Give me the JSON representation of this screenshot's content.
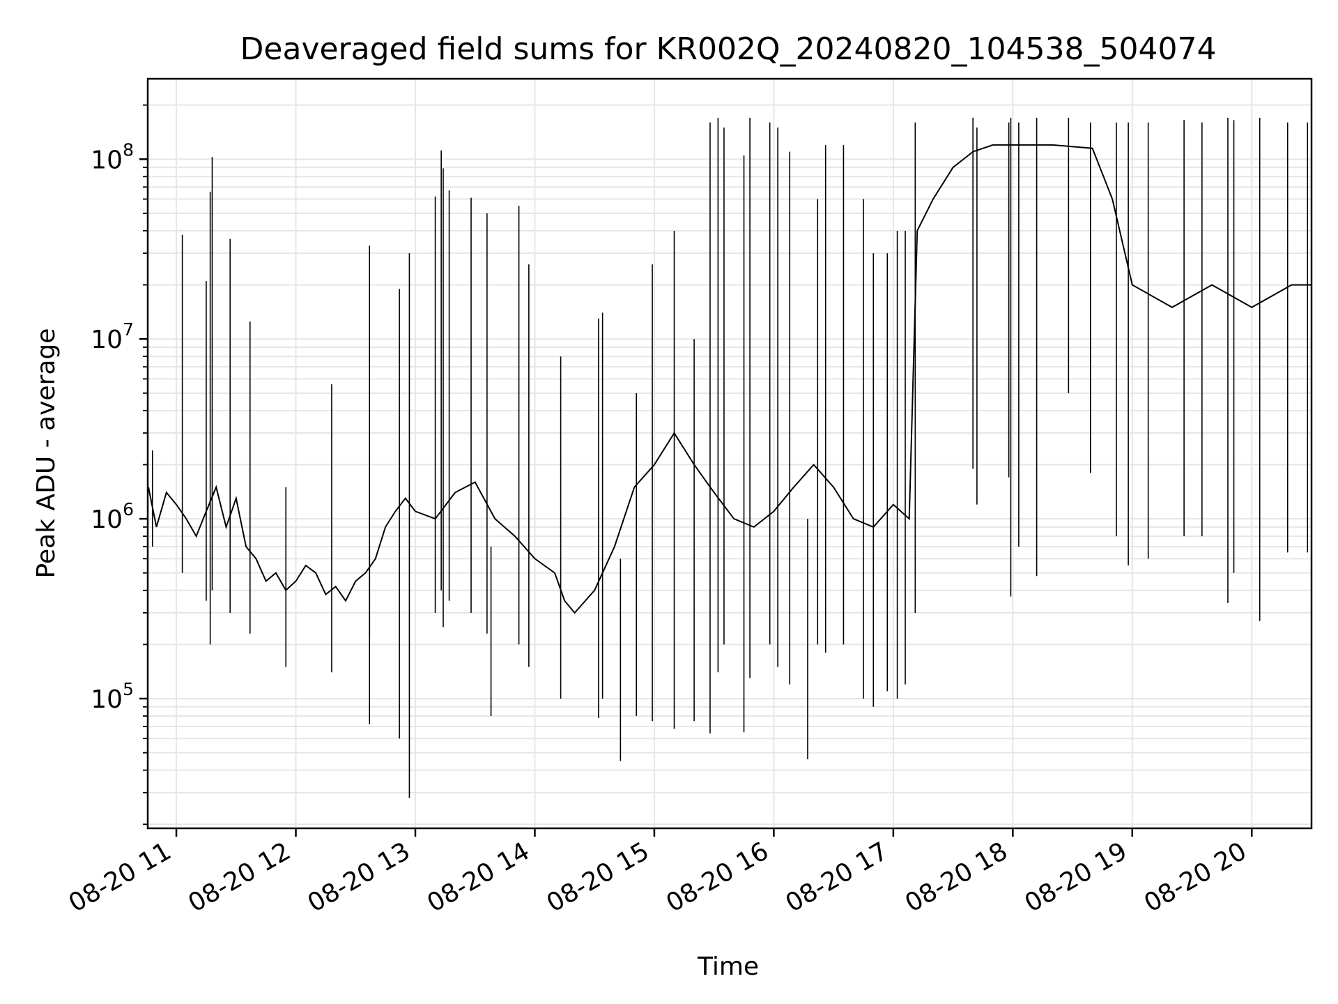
{
  "chart_data": {
    "type": "line",
    "title": "Deaveraged field sums for KR002Q_20240820_104538_504074",
    "xlabel": "Time",
    "ylabel": "Peak ADU - average",
    "yscale": "log",
    "grid": true,
    "line_color": "#000000",
    "grid_color": "#e6e6e6",
    "x_ticks": [
      "08-20 11",
      "08-20 12",
      "08-20 13",
      "08-20 14",
      "08-20 15",
      "08-20 16",
      "08-20 17",
      "08-20 18",
      "08-20 19",
      "08-20 20"
    ],
    "y_ticks": [
      {
        "value": 100000,
        "base": "10",
        "exp": "5"
      },
      {
        "value": 1000000,
        "base": "10",
        "exp": "6"
      },
      {
        "value": 10000000,
        "base": "10",
        "exp": "7"
      },
      {
        "value": 100000000,
        "base": "10",
        "exp": "8"
      }
    ],
    "xlim": [
      "2024-08-20 10:45:38",
      "2024-08-20 20:30:00"
    ],
    "ylim": [
      19000,
      280000000
    ],
    "series": [
      {
        "points": [
          [
            "2024-08-20 10:46",
            1500000
          ],
          [
            "2024-08-20 10:50",
            900000
          ],
          [
            "2024-08-20 10:55",
            1400000
          ],
          [
            "2024-08-20 11:00",
            1200000
          ],
          [
            "2024-08-20 11:05",
            1000000
          ],
          [
            "2024-08-20 11:10",
            800000
          ],
          [
            "2024-08-20 11:15",
            1100000
          ],
          [
            "2024-08-20 11:20",
            1500000
          ],
          [
            "2024-08-20 11:25",
            900000
          ],
          [
            "2024-08-20 11:30",
            1300000
          ],
          [
            "2024-08-20 11:35",
            700000
          ],
          [
            "2024-08-20 11:40",
            600000
          ],
          [
            "2024-08-20 11:45",
            450000
          ],
          [
            "2024-08-20 11:50",
            500000
          ],
          [
            "2024-08-20 11:55",
            400000
          ],
          [
            "2024-08-20 12:00",
            450000
          ],
          [
            "2024-08-20 12:05",
            550000
          ],
          [
            "2024-08-20 12:10",
            500000
          ],
          [
            "2024-08-20 12:15",
            380000
          ],
          [
            "2024-08-20 12:20",
            420000
          ],
          [
            "2024-08-20 12:25",
            350000
          ],
          [
            "2024-08-20 12:30",
            450000
          ],
          [
            "2024-08-20 12:35",
            500000
          ],
          [
            "2024-08-20 12:40",
            600000
          ],
          [
            "2024-08-20 12:45",
            900000
          ],
          [
            "2024-08-20 12:50",
            1100000
          ],
          [
            "2024-08-20 12:55",
            1300000
          ],
          [
            "2024-08-20 13:00",
            1100000
          ],
          [
            "2024-08-20 13:10",
            1000000
          ],
          [
            "2024-08-20 13:20",
            1400000
          ],
          [
            "2024-08-20 13:30",
            1600000
          ],
          [
            "2024-08-20 13:40",
            1000000
          ],
          [
            "2024-08-20 13:50",
            800000
          ],
          [
            "2024-08-20 14:00",
            600000
          ],
          [
            "2024-08-20 14:10",
            500000
          ],
          [
            "2024-08-20 14:15",
            350000
          ],
          [
            "2024-08-20 14:20",
            300000
          ],
          [
            "2024-08-20 14:30",
            400000
          ],
          [
            "2024-08-20 14:40",
            700000
          ],
          [
            "2024-08-20 14:50",
            1500000
          ],
          [
            "2024-08-20 15:00",
            2000000
          ],
          [
            "2024-08-20 15:10",
            3000000
          ],
          [
            "2024-08-20 15:20",
            2000000
          ],
          [
            "2024-08-20 15:30",
            1400000
          ],
          [
            "2024-08-20 15:40",
            1000000
          ],
          [
            "2024-08-20 15:50",
            900000
          ],
          [
            "2024-08-20 16:00",
            1100000
          ],
          [
            "2024-08-20 16:10",
            1500000
          ],
          [
            "2024-08-20 16:20",
            2000000
          ],
          [
            "2024-08-20 16:30",
            1500000
          ],
          [
            "2024-08-20 16:40",
            1000000
          ],
          [
            "2024-08-20 16:50",
            900000
          ],
          [
            "2024-08-20 17:00",
            1200000
          ],
          [
            "2024-08-20 17:08",
            1000000
          ],
          [
            "2024-08-20 17:12",
            40000000
          ],
          [
            "2024-08-20 17:20",
            60000000
          ],
          [
            "2024-08-20 17:30",
            90000000
          ],
          [
            "2024-08-20 17:40",
            110000000
          ],
          [
            "2024-08-20 17:50",
            120000000
          ],
          [
            "2024-08-20 18:00",
            120000000
          ],
          [
            "2024-08-20 18:20",
            120000000
          ],
          [
            "2024-08-20 18:40",
            115000000
          ],
          [
            "2024-08-20 18:50",
            60000000
          ],
          [
            "2024-08-20 19:00",
            20000000
          ],
          [
            "2024-08-20 19:20",
            15000000
          ],
          [
            "2024-08-20 19:40",
            20000000
          ],
          [
            "2024-08-20 20:00",
            15000000
          ],
          [
            "2024-08-20 20:20",
            20000000
          ],
          [
            "2024-08-20 20:30",
            20000000
          ]
        ],
        "spikes": [
          [
            "2024-08-20 10:48",
            700000,
            2400000
          ],
          [
            "2024-08-20 11:03",
            500000,
            38000000
          ],
          [
            "2024-08-20 11:15",
            350000,
            21000000
          ],
          [
            "2024-08-20 11:17",
            200000,
            66000000
          ],
          [
            "2024-08-20 11:18",
            400000,
            103000000
          ],
          [
            "2024-08-20 11:27",
            300000,
            36000000
          ],
          [
            "2024-08-20 11:37",
            230000,
            12500000
          ],
          [
            "2024-08-20 11:55",
            150000,
            1500000
          ],
          [
            "2024-08-20 12:18",
            140000,
            5600000
          ],
          [
            "2024-08-20 12:37",
            220000,
            33000000
          ],
          [
            "2024-08-20 12:37",
            72000,
            700000
          ],
          [
            "2024-08-20 12:57",
            28000,
            30000000
          ],
          [
            "2024-08-20 12:52",
            60000,
            19000000
          ],
          [
            "2024-08-20 13:10",
            300000,
            62000000
          ],
          [
            "2024-08-20 13:13",
            400000,
            112000000
          ],
          [
            "2024-08-20 13:14",
            250000,
            89000000
          ],
          [
            "2024-08-20 13:17",
            350000,
            67000000
          ],
          [
            "2024-08-20 13:28",
            300000,
            61000000
          ],
          [
            "2024-08-20 13:36",
            230000,
            50000000
          ],
          [
            "2024-08-20 13:38",
            80000,
            700000
          ],
          [
            "2024-08-20 13:52",
            200000,
            55000000
          ],
          [
            "2024-08-20 13:57",
            150000,
            26000000
          ],
          [
            "2024-08-20 14:13",
            100000,
            8000000
          ],
          [
            "2024-08-20 14:32",
            78000,
            13000000
          ],
          [
            "2024-08-20 14:34",
            100000,
            14000000
          ],
          [
            "2024-08-20 14:43",
            45000,
            600000
          ],
          [
            "2024-08-20 14:51",
            80000,
            5000000
          ],
          [
            "2024-08-20 14:59",
            75000,
            26000000
          ],
          [
            "2024-08-20 15:10",
            68000,
            40000000
          ],
          [
            "2024-08-20 15:20",
            75000,
            10000000
          ],
          [
            "2024-08-20 15:28",
            64000,
            160000000
          ],
          [
            "2024-08-20 15:32",
            140000,
            170000000
          ],
          [
            "2024-08-20 15:35",
            200000,
            150000000
          ],
          [
            "2024-08-20 15:45",
            65000,
            105000000
          ],
          [
            "2024-08-20 15:48",
            130000,
            170000000
          ],
          [
            "2024-08-20 15:58",
            200000,
            160000000
          ],
          [
            "2024-08-20 16:02",
            150000,
            150000000
          ],
          [
            "2024-08-20 16:08",
            120000,
            110000000
          ],
          [
            "2024-08-20 16:17",
            46000,
            1000000
          ],
          [
            "2024-08-20 16:22",
            200000,
            60000000
          ],
          [
            "2024-08-20 16:26",
            180000,
            120000000
          ],
          [
            "2024-08-20 16:35",
            200000,
            120000000
          ],
          [
            "2024-08-20 16:45",
            100000,
            60000000
          ],
          [
            "2024-08-20 16:50",
            90000,
            30000000
          ],
          [
            "2024-08-20 16:57",
            110000,
            30000000
          ],
          [
            "2024-08-20 17:02",
            100000,
            40000000
          ],
          [
            "2024-08-20 17:06",
            120000,
            40000000
          ],
          [
            "2024-08-20 17:11",
            300000,
            160000000
          ],
          [
            "2024-08-20 17:40",
            1900000,
            170000000
          ],
          [
            "2024-08-20 17:42",
            1200000,
            150000000
          ],
          [
            "2024-08-20 17:58",
            1700000,
            160000000
          ],
          [
            "2024-08-20 17:59",
            370000,
            170000000
          ],
          [
            "2024-08-20 18:03",
            700000,
            160000000
          ],
          [
            "2024-08-20 18:12",
            480000,
            170000000
          ],
          [
            "2024-08-20 18:28",
            5000000,
            170000000
          ],
          [
            "2024-08-20 18:39",
            1800000,
            160000000
          ],
          [
            "2024-08-20 18:52",
            800000,
            160000000
          ],
          [
            "2024-08-20 18:58",
            550000,
            160000000
          ],
          [
            "2024-08-20 19:08",
            600000,
            160000000
          ],
          [
            "2024-08-20 19:26",
            800000,
            165000000
          ],
          [
            "2024-08-20 19:35",
            800000,
            160000000
          ],
          [
            "2024-08-20 19:48",
            340000,
            170000000
          ],
          [
            "2024-08-20 19:51",
            500000,
            165000000
          ],
          [
            "2024-08-20 20:04",
            270000,
            170000000
          ],
          [
            "2024-08-20 20:18",
            650000,
            160000000
          ],
          [
            "2024-08-20 20:28",
            650000,
            160000000
          ]
        ]
      }
    ]
  }
}
